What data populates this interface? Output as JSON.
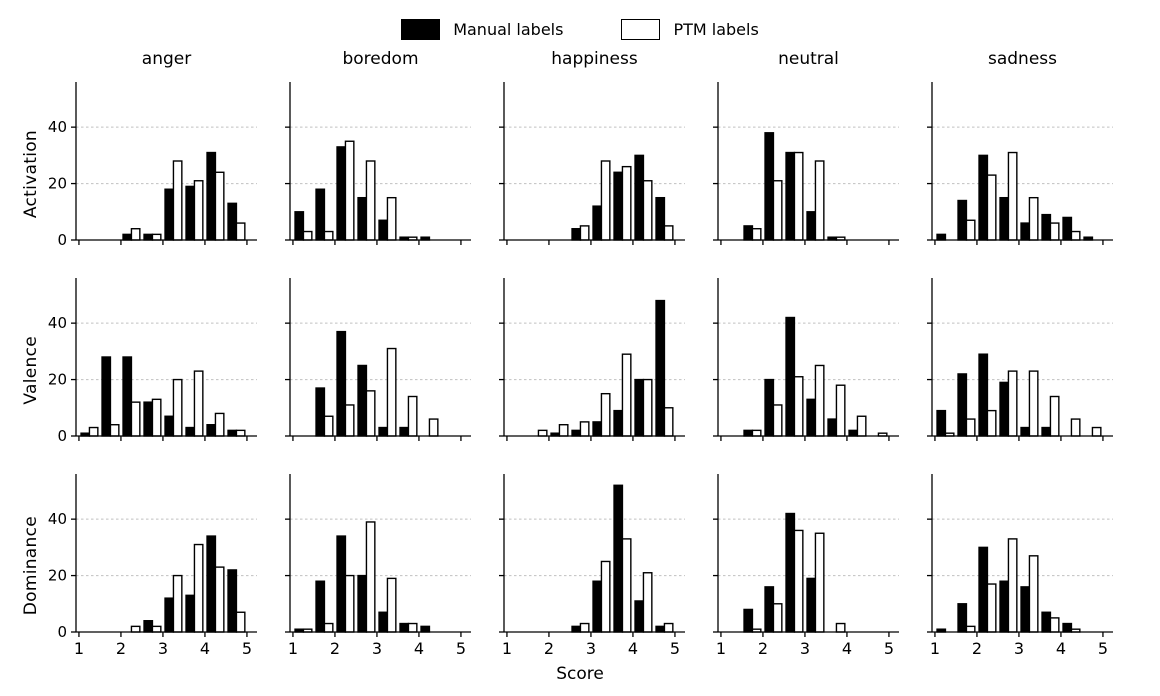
{
  "legend": {
    "manual_label": "Manual labels",
    "ptm_label": "PTM labels"
  },
  "column_titles": [
    "anger",
    "boredom",
    "happiness",
    "neutral",
    "sadness"
  ],
  "row_labels": [
    "Activation",
    "Valence",
    "Dominance"
  ],
  "x_axis_label": "Score",
  "chart_data": {
    "type": "bar",
    "description": "3x5 grid of grouped histograms: count distributions of Activation/Valence/Dominance scores per emotion, for Manual labels (black) vs PTM labels (white).",
    "bin_centers": [
      1.25,
      1.75,
      2.25,
      2.75,
      3.25,
      3.75,
      4.25,
      4.75
    ],
    "bin_width": 0.5,
    "bar_width_units": 0.2,
    "x_ticks": [
      1,
      2,
      3,
      4,
      5
    ],
    "y_ticks": [
      0,
      20,
      40
    ],
    "xlim": [
      0.93,
      5.25
    ],
    "ylim": [
      0,
      56
    ],
    "grid": {
      "horizontal_dashed_at": [
        20,
        40
      ],
      "color": "#c0c0c0"
    },
    "colors": {
      "manual_fill": "#000000",
      "ptm_fill": "#ffffff",
      "bar_edge": "#000000",
      "spine": "#000000"
    },
    "series_names": [
      "Manual labels",
      "PTM labels"
    ],
    "subplots": [
      {
        "row": "Activation",
        "column": "anger",
        "manual": [
          0,
          0,
          2,
          2,
          18,
          19,
          31,
          13
        ],
        "ptm": [
          0,
          0,
          4,
          2,
          28,
          21,
          24,
          6
        ]
      },
      {
        "row": "Activation",
        "column": "boredom",
        "manual": [
          10,
          18,
          33,
          15,
          7,
          1,
          1,
          0
        ],
        "ptm": [
          3,
          3,
          35,
          28,
          15,
          1,
          0,
          0
        ]
      },
      {
        "row": "Activation",
        "column": "happiness",
        "manual": [
          0,
          0,
          0,
          4,
          12,
          24,
          30,
          15
        ],
        "ptm": [
          0,
          0,
          0,
          5,
          28,
          26,
          21,
          5
        ]
      },
      {
        "row": "Activation",
        "column": "neutral",
        "manual": [
          0,
          5,
          38,
          31,
          10,
          1,
          0,
          0
        ],
        "ptm": [
          0,
          4,
          21,
          31,
          28,
          1,
          0,
          0
        ]
      },
      {
        "row": "Activation",
        "column": "sadness",
        "manual": [
          2,
          14,
          30,
          15,
          6,
          9,
          8,
          1
        ],
        "ptm": [
          0,
          7,
          23,
          31,
          15,
          6,
          3,
          0
        ]
      },
      {
        "row": "Valence",
        "column": "anger",
        "manual": [
          1,
          28,
          28,
          12,
          7,
          3,
          4,
          2
        ],
        "ptm": [
          3,
          4,
          12,
          13,
          20,
          23,
          8,
          2
        ]
      },
      {
        "row": "Valence",
        "column": "boredom",
        "manual": [
          0,
          17,
          37,
          25,
          3,
          3,
          0,
          0
        ],
        "ptm": [
          0,
          7,
          11,
          16,
          31,
          14,
          6,
          0
        ]
      },
      {
        "row": "Valence",
        "column": "happiness",
        "manual": [
          0,
          0,
          1,
          2,
          5,
          9,
          20,
          48
        ],
        "ptm": [
          0,
          2,
          4,
          5,
          15,
          29,
          20,
          10
        ]
      },
      {
        "row": "Valence",
        "column": "neutral",
        "manual": [
          0,
          2,
          20,
          42,
          13,
          6,
          2,
          0
        ],
        "ptm": [
          0,
          2,
          11,
          21,
          25,
          18,
          7,
          1
        ]
      },
      {
        "row": "Valence",
        "column": "sadness",
        "manual": [
          9,
          22,
          29,
          19,
          3,
          3,
          0,
          0
        ],
        "ptm": [
          1,
          6,
          9,
          23,
          23,
          14,
          6,
          3
        ]
      },
      {
        "row": "Dominance",
        "column": "anger",
        "manual": [
          0,
          0,
          0,
          4,
          12,
          13,
          34,
          22
        ],
        "ptm": [
          0,
          0,
          2,
          2,
          20,
          31,
          23,
          7
        ]
      },
      {
        "row": "Dominance",
        "column": "boredom",
        "manual": [
          1,
          18,
          34,
          20,
          7,
          3,
          2,
          0
        ],
        "ptm": [
          1,
          3,
          20,
          39,
          19,
          3,
          0,
          0
        ]
      },
      {
        "row": "Dominance",
        "column": "happiness",
        "manual": [
          0,
          0,
          0,
          2,
          18,
          52,
          11,
          2
        ],
        "ptm": [
          0,
          0,
          0,
          3,
          25,
          33,
          21,
          3
        ]
      },
      {
        "row": "Dominance",
        "column": "neutral",
        "manual": [
          0,
          8,
          16,
          42,
          19,
          0,
          0,
          0
        ],
        "ptm": [
          0,
          1,
          10,
          36,
          35,
          3,
          0,
          0
        ]
      },
      {
        "row": "Dominance",
        "column": "sadness",
        "manual": [
          1,
          10,
          30,
          18,
          16,
          7,
          3,
          0
        ],
        "ptm": [
          0,
          2,
          17,
          33,
          27,
          5,
          1,
          0
        ]
      }
    ]
  }
}
